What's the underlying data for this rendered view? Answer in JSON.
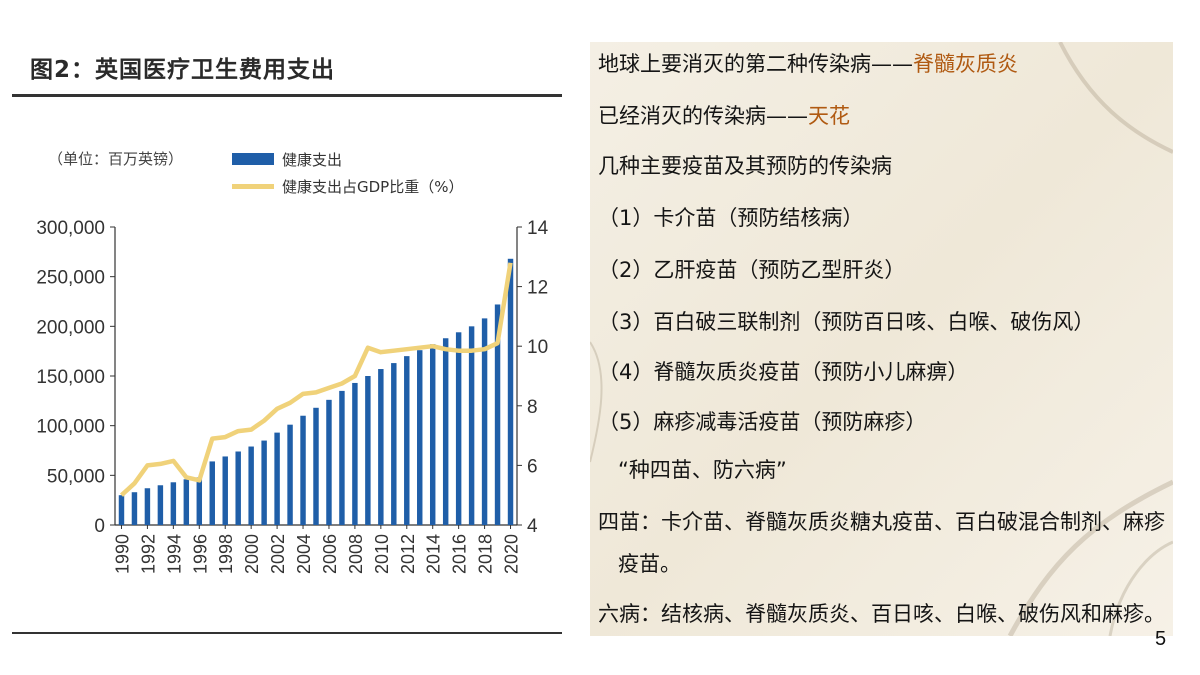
{
  "chart_data": {
    "type": "bar+line",
    "title": "图2：英国医疗卫生费用支出",
    "unit_note": "（单位：百万英镑）",
    "legend": [
      "健康支出",
      "健康支出占GDP比重（%）"
    ],
    "legend_position": "top-center",
    "grid": false,
    "x": [
      1990,
      1991,
      1992,
      1993,
      1994,
      1995,
      1996,
      1997,
      1998,
      1999,
      2000,
      2001,
      2002,
      2003,
      2004,
      2005,
      2006,
      2007,
      2008,
      2009,
      2010,
      2011,
      2012,
      2013,
      2014,
      2015,
      2016,
      2017,
      2018,
      2019,
      2020
    ],
    "x_tick_labels": [
      "1990",
      "1992",
      "1994",
      "1996",
      "1998",
      "2000",
      "2002",
      "2004",
      "2006",
      "2008",
      "2010",
      "2012",
      "2014",
      "2016",
      "2018",
      "2020"
    ],
    "y_left_ticks": [
      "0",
      "50,000",
      "100,000",
      "150,000",
      "200,000",
      "250,000",
      "300,000"
    ],
    "y_right_ticks": [
      "4",
      "6",
      "8",
      "10",
      "12",
      "14"
    ],
    "ylim_left": [
      0,
      300000
    ],
    "ylim_right": [
      4,
      14
    ],
    "series": [
      {
        "name": "健康支出",
        "type": "bar",
        "axis": "left",
        "color": "#1f5ea8",
        "values": [
          30000,
          33000,
          37000,
          40000,
          43000,
          46000,
          48000,
          64000,
          69000,
          74000,
          79000,
          85000,
          93000,
          101000,
          110000,
          118000,
          126000,
          135000,
          143000,
          150000,
          157000,
          163000,
          170000,
          176000,
          182000,
          188000,
          194000,
          200000,
          208000,
          222000,
          268000
        ]
      },
      {
        "name": "健康支出占GDP比重（%）",
        "type": "line",
        "axis": "right",
        "color": "#f0d27a",
        "values": [
          5.0,
          5.4,
          6.0,
          6.05,
          6.15,
          5.6,
          5.5,
          6.9,
          6.95,
          7.15,
          7.2,
          7.5,
          7.9,
          8.1,
          8.4,
          8.45,
          8.6,
          8.75,
          9.0,
          9.95,
          9.8,
          9.85,
          9.9,
          9.95,
          10.0,
          9.9,
          9.85,
          9.85,
          9.9,
          10.1,
          12.8
        ]
      }
    ]
  },
  "text_panel": {
    "line1_prefix": "地球上要消灭的第二种传染病——",
    "line1_highlight": "脊髓灰质炎",
    "line2_prefix": "已经消灭的传染病——",
    "line2_highlight": "天花",
    "line3": "几种主要疫苗及其预防的传染病",
    "item1": "（1）卡介苗（预防结核病）",
    "item2": "（2）乙肝疫苗（预防乙型肝炎）",
    "item3": "（3）百白破三联制剂（预防百日咳、白喉、破伤风）",
    "item4": "（4）脊髓灰质炎疫苗（预防小儿麻痹）",
    "item5": "（5）麻疹减毒活疫苗（预防麻疹）",
    "slogan": "“种四苗、防六病”",
    "four_vaccines_1": "四苗：卡介苗、脊髓灰质炎糖丸疫苗、百白破混合制剂、麻疹",
    "four_vaccines_2": "疫苗。",
    "six_diseases": "六病：结核病、脊髓灰质炎、百日咳、白喉、破伤风和麻疹。"
  },
  "page_number": "5",
  "colors": {
    "highlight": "#b05a12",
    "panel_bg": "#f2ecdf"
  }
}
